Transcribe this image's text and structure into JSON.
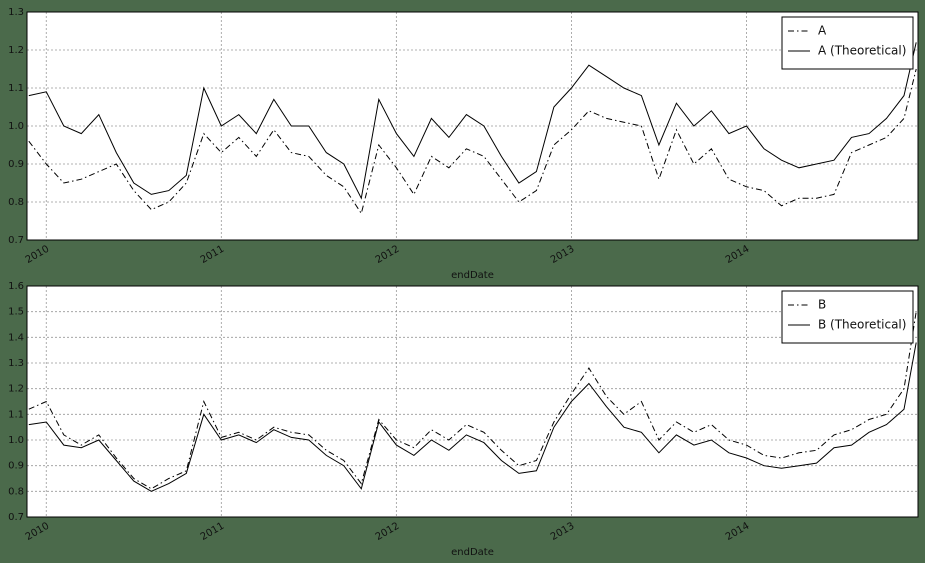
{
  "chart_data": [
    {
      "type": "line",
      "xlabel": "endDate",
      "x": [
        2009.9,
        2010.0,
        2010.1,
        2010.2,
        2010.3,
        2010.4,
        2010.5,
        2010.6,
        2010.7,
        2010.8,
        2010.9,
        2011.0,
        2011.1,
        2011.2,
        2011.3,
        2011.4,
        2011.5,
        2011.6,
        2011.7,
        2011.8,
        2011.9,
        2012.0,
        2012.1,
        2012.2,
        2012.3,
        2012.4,
        2012.5,
        2012.6,
        2012.7,
        2012.8,
        2012.9,
        2013.0,
        2013.1,
        2013.2,
        2013.3,
        2013.4,
        2013.5,
        2013.6,
        2013.7,
        2013.8,
        2013.9,
        2014.0,
        2014.1,
        2014.2,
        2014.3,
        2014.4,
        2014.5,
        2014.6,
        2014.7,
        2014.8,
        2014.9,
        2014.97
      ],
      "series": [
        {
          "name": "A",
          "color": "#000000",
          "linestyle": "dashdot",
          "values": [
            0.96,
            0.9,
            0.85,
            0.86,
            0.88,
            0.9,
            0.83,
            0.78,
            0.8,
            0.85,
            0.98,
            0.93,
            0.97,
            0.92,
            0.99,
            0.93,
            0.92,
            0.87,
            0.84,
            0.77,
            0.95,
            0.89,
            0.82,
            0.92,
            0.89,
            0.94,
            0.92,
            0.86,
            0.8,
            0.83,
            0.95,
            0.99,
            1.04,
            1.02,
            1.01,
            1.0,
            0.86,
            0.99,
            0.9,
            0.94,
            0.86,
            0.84,
            0.83,
            0.79,
            0.81,
            0.81,
            0.82,
            0.93,
            0.95,
            0.97,
            1.02,
            1.15
          ]
        },
        {
          "name": "A (Theoretical)",
          "color": "#000000",
          "linestyle": "solid",
          "values": [
            1.08,
            1.09,
            1.0,
            0.98,
            1.03,
            0.93,
            0.85,
            0.82,
            0.83,
            0.87,
            1.1,
            1.0,
            1.03,
            0.98,
            1.07,
            1.0,
            1.0,
            0.93,
            0.9,
            0.81,
            1.07,
            0.98,
            0.92,
            1.02,
            0.97,
            1.03,
            1.0,
            0.92,
            0.85,
            0.88,
            1.05,
            1.1,
            1.16,
            1.13,
            1.1,
            1.08,
            0.95,
            1.06,
            1.0,
            1.04,
            0.98,
            1.0,
            0.94,
            0.91,
            0.89,
            0.9,
            0.91,
            0.97,
            0.98,
            1.02,
            1.08,
            1.22
          ]
        }
      ],
      "xlim": [
        2009.89,
        2014.98
      ],
      "xticks": [
        2010,
        2011,
        2012,
        2013,
        2014
      ],
      "ylim": [
        0.7,
        1.3
      ],
      "yticks": [
        0.7,
        0.8,
        0.9,
        {
          "value": 1,
          "label": "1.0"
        },
        1.1,
        1.2,
        1.3
      ],
      "grid": true,
      "legend": "upper right"
    },
    {
      "type": "line",
      "xlabel": "endDate",
      "x": [
        2009.9,
        2010.0,
        2010.1,
        2010.2,
        2010.3,
        2010.4,
        2010.5,
        2010.6,
        2010.7,
        2010.8,
        2010.9,
        2011.0,
        2011.1,
        2011.2,
        2011.3,
        2011.4,
        2011.5,
        2011.6,
        2011.7,
        2011.8,
        2011.9,
        2012.0,
        2012.1,
        2012.2,
        2012.3,
        2012.4,
        2012.5,
        2012.6,
        2012.7,
        2012.8,
        2012.9,
        2013.0,
        2013.1,
        2013.2,
        2013.3,
        2013.4,
        2013.5,
        2013.6,
        2013.7,
        2013.8,
        2013.9,
        2014.0,
        2014.1,
        2014.2,
        2014.3,
        2014.4,
        2014.5,
        2014.6,
        2014.7,
        2014.8,
        2014.9,
        2014.97
      ],
      "series": [
        {
          "name": "B",
          "color": "#000000",
          "linestyle": "dashdot",
          "values": [
            1.12,
            1.15,
            1.02,
            0.98,
            1.02,
            0.93,
            0.85,
            0.81,
            0.85,
            0.88,
            1.15,
            1.01,
            1.03,
            1.0,
            1.05,
            1.03,
            1.02,
            0.96,
            0.92,
            0.83,
            1.08,
            1.0,
            0.97,
            1.04,
            1.0,
            1.06,
            1.03,
            0.96,
            0.9,
            0.92,
            1.07,
            1.18,
            1.28,
            1.17,
            1.1,
            1.15,
            1.0,
            1.07,
            1.03,
            1.06,
            1.0,
            0.98,
            0.94,
            0.93,
            0.95,
            0.96,
            1.02,
            1.04,
            1.08,
            1.1,
            1.2,
            1.5
          ]
        },
        {
          "name": "B (Theoretical)",
          "color": "#000000",
          "linestyle": "solid",
          "values": [
            1.06,
            1.07,
            0.98,
            0.97,
            1.0,
            0.92,
            0.84,
            0.8,
            0.83,
            0.87,
            1.1,
            1.0,
            1.02,
            0.99,
            1.04,
            1.01,
            1.0,
            0.94,
            0.9,
            0.81,
            1.07,
            0.98,
            0.94,
            1.0,
            0.96,
            1.02,
            0.99,
            0.92,
            0.87,
            0.88,
            1.05,
            1.15,
            1.22,
            1.13,
            1.05,
            1.03,
            0.95,
            1.02,
            0.98,
            1.0,
            0.95,
            0.93,
            0.9,
            0.89,
            0.9,
            0.91,
            0.97,
            0.98,
            1.03,
            1.06,
            1.12,
            1.38
          ]
        }
      ],
      "xlim": [
        2009.89,
        2014.98
      ],
      "xticks": [
        2010,
        2011,
        2012,
        2013,
        2014
      ],
      "ylim": [
        0.7,
        1.6
      ],
      "yticks": [
        0.7,
        0.8,
        0.9,
        {
          "value": 1,
          "label": "1.0"
        },
        1.1,
        1.2,
        1.3,
        1.4,
        1.5,
        1.6
      ],
      "grid": true,
      "legend": "upper right"
    }
  ]
}
